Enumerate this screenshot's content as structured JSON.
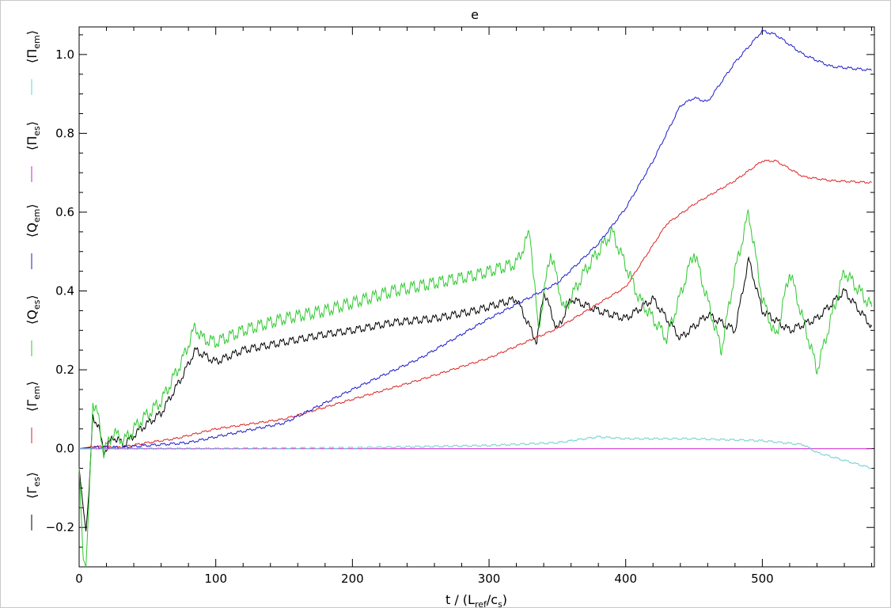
{
  "chart_data": {
    "type": "line",
    "title": "e",
    "xlabel": "t / (L_ref/c_s)",
    "ylabel": "",
    "xlim": [
      0,
      582
    ],
    "ylim": [
      -0.3,
      1.07
    ],
    "x_ticks": [
      0,
      100,
      200,
      300,
      400,
      500
    ],
    "y_ticks": [
      -0.2,
      0.0,
      0.2,
      0.4,
      0.6,
      0.8,
      1.0
    ],
    "x_tick_labels": [
      "0",
      "100",
      "200",
      "300",
      "400",
      "500"
    ],
    "y_tick_labels": [
      "−0.2",
      "0.0",
      "0.2",
      "0.4",
      "0.6",
      "0.8",
      "1.0"
    ],
    "grid": false,
    "legend_position": "left, vertical",
    "series": [
      {
        "name": "⟨Γ_es⟩",
        "color": "#000000",
        "x": [
          0,
          3,
          5,
          7,
          10,
          14,
          18,
          25,
          33,
          45,
          60,
          75,
          85,
          90,
          100,
          120,
          150,
          180,
          200,
          230,
          260,
          290,
          320,
          335,
          340,
          350,
          360,
          380,
          400,
          420,
          440,
          460,
          480,
          490,
          500,
          520,
          540,
          560,
          580
        ],
        "values": [
          -0.05,
          -0.15,
          -0.21,
          -0.12,
          0.08,
          0.06,
          -0.01,
          0.03,
          0.01,
          0.05,
          0.09,
          0.18,
          0.25,
          0.24,
          0.22,
          0.25,
          0.27,
          0.29,
          0.3,
          0.32,
          0.33,
          0.35,
          0.38,
          0.27,
          0.4,
          0.3,
          0.38,
          0.35,
          0.33,
          0.38,
          0.28,
          0.34,
          0.3,
          0.48,
          0.35,
          0.3,
          0.33,
          0.4,
          0.31
        ]
      },
      {
        "name": "⟨Γ_em⟩",
        "color": "#dd2222",
        "x": [
          0,
          10,
          20,
          30,
          50,
          70,
          100,
          150,
          200,
          250,
          300,
          350,
          400,
          430,
          450,
          480,
          500,
          510,
          530,
          550,
          580
        ],
        "values": [
          0.0,
          0.005,
          0.005,
          0.003,
          0.015,
          0.025,
          0.05,
          0.075,
          0.125,
          0.175,
          0.23,
          0.305,
          0.41,
          0.57,
          0.62,
          0.68,
          0.73,
          0.73,
          0.69,
          0.68,
          0.675
        ]
      },
      {
        "name": "⟨Q_es⟩",
        "color": "#2ec82e",
        "x": [
          0,
          3,
          5,
          7,
          10,
          14,
          18,
          25,
          33,
          45,
          60,
          75,
          85,
          90,
          100,
          120,
          150,
          180,
          200,
          230,
          260,
          290,
          320,
          330,
          336,
          345,
          355,
          370,
          390,
          410,
          430,
          450,
          470,
          480,
          490,
          500,
          510,
          520,
          540,
          560,
          580
        ],
        "values": [
          -0.05,
          -0.28,
          -0.3,
          -0.15,
          0.12,
          0.08,
          -0.01,
          0.04,
          0.02,
          0.07,
          0.12,
          0.22,
          0.31,
          0.28,
          0.27,
          0.3,
          0.33,
          0.35,
          0.37,
          0.4,
          0.42,
          0.44,
          0.47,
          0.55,
          0.3,
          0.5,
          0.35,
          0.45,
          0.55,
          0.38,
          0.28,
          0.5,
          0.25,
          0.45,
          0.6,
          0.38,
          0.28,
          0.45,
          0.2,
          0.45,
          0.36
        ]
      },
      {
        "name": "⟨Q_em⟩",
        "color": "#1a1acc",
        "x": [
          0,
          10,
          20,
          30,
          50,
          80,
          100,
          150,
          200,
          250,
          300,
          350,
          380,
          400,
          420,
          440,
          450,
          460,
          480,
          500,
          510,
          530,
          550,
          580
        ],
        "values": [
          0.0,
          0.003,
          0.004,
          0.003,
          0.008,
          0.015,
          0.03,
          0.065,
          0.15,
          0.23,
          0.33,
          0.42,
          0.52,
          0.61,
          0.73,
          0.87,
          0.89,
          0.88,
          0.98,
          1.06,
          1.05,
          1.0,
          0.97,
          0.96
        ]
      },
      {
        "name": "⟨Π_es⟩",
        "color": "#d01fd0",
        "x": [
          0,
          580
        ],
        "values": [
          0.0,
          0.0
        ]
      },
      {
        "name": "⟨Π_em⟩",
        "color": "#6fcfcf",
        "x": [
          0,
          100,
          200,
          300,
          350,
          380,
          400,
          450,
          500,
          530,
          540,
          560,
          580
        ],
        "values": [
          0.0,
          0.0,
          0.002,
          0.008,
          0.015,
          0.03,
          0.025,
          0.025,
          0.02,
          0.01,
          -0.01,
          -0.03,
          -0.05
        ]
      }
    ]
  }
}
